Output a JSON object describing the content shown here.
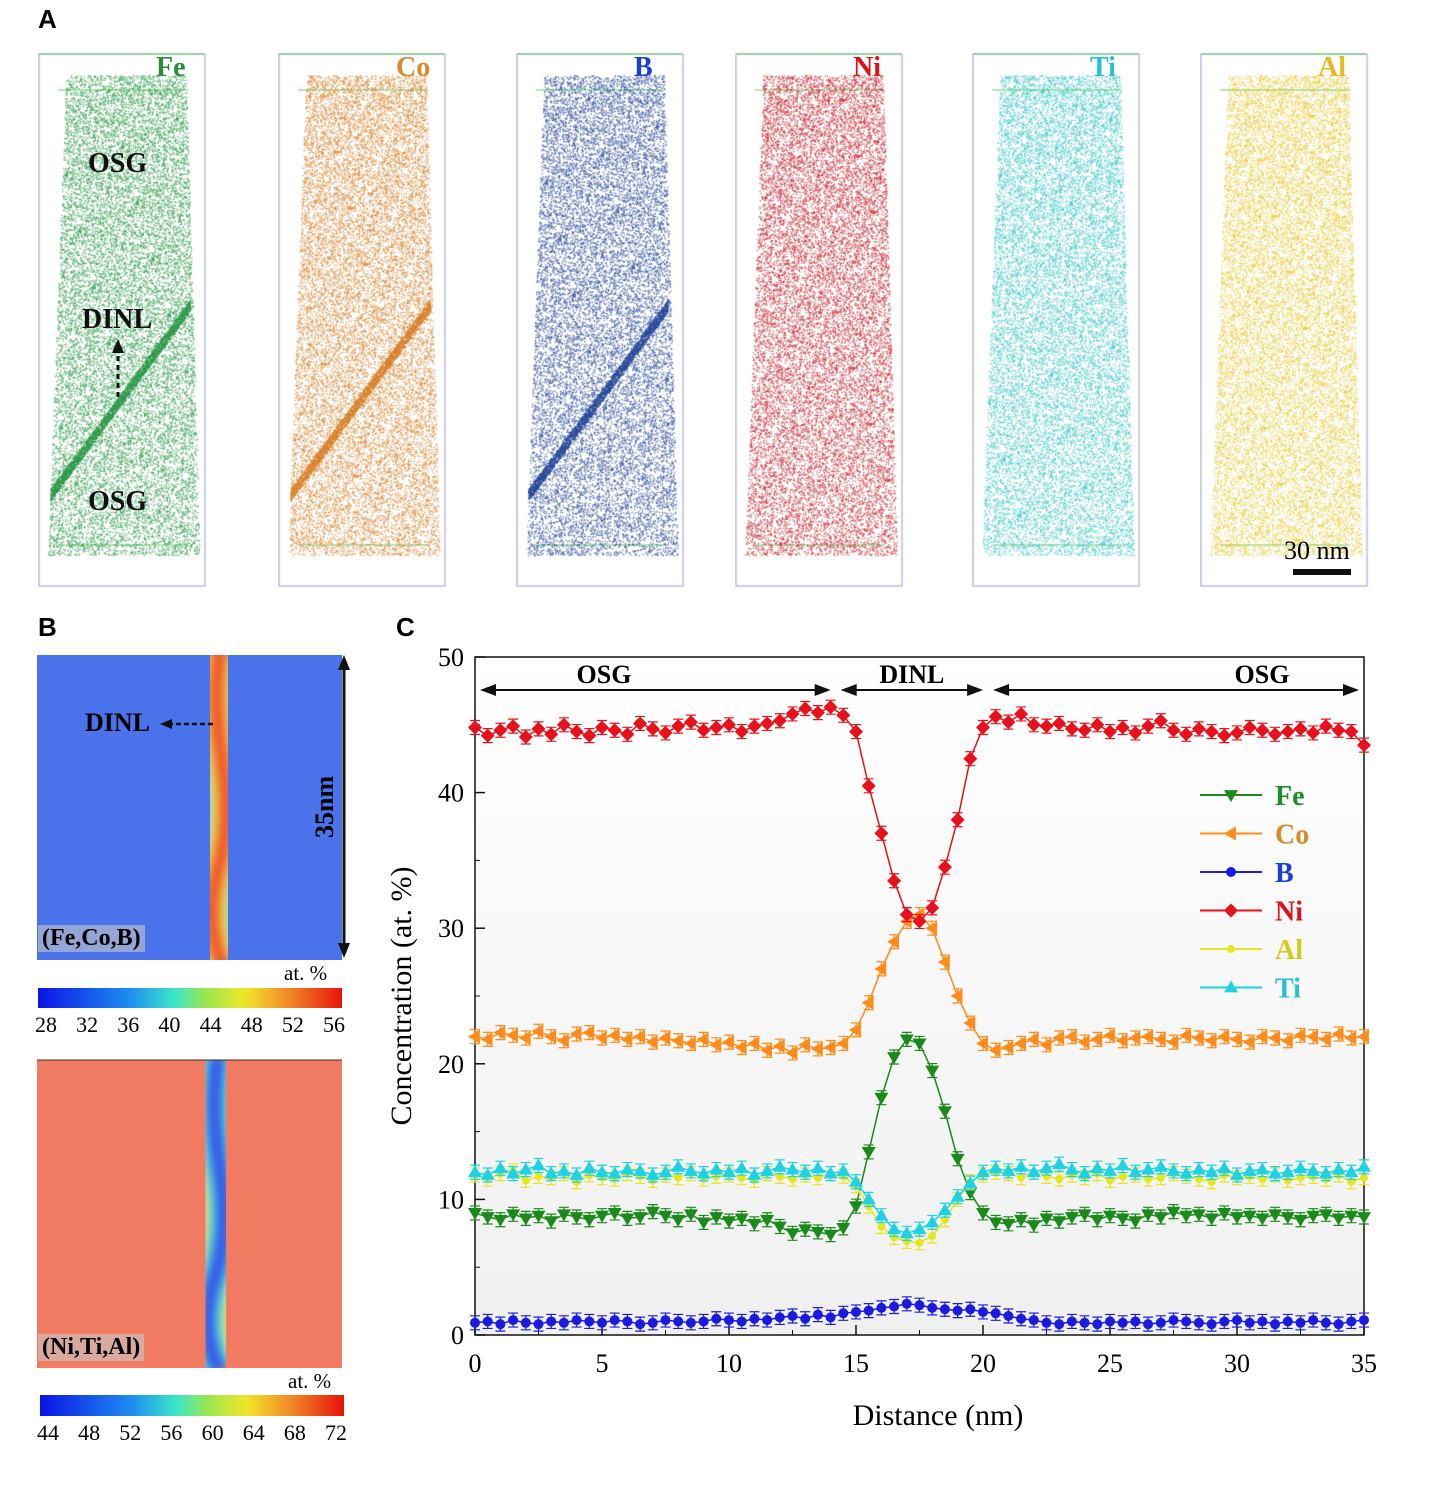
{
  "panels": {
    "a": "A",
    "b": "B",
    "c": "C"
  },
  "panel_a": {
    "tips": [
      {
        "element": "Fe",
        "label_color": "#2e8b3a",
        "dot_color": "#2e9a4a",
        "interface": true
      },
      {
        "element": "Co",
        "label_color": "#d98a2b",
        "dot_color": "#d9822b",
        "interface": true
      },
      {
        "element": "B",
        "label_color": "#1a3ed8",
        "dot_color": "#2a4a9a",
        "interface": true
      },
      {
        "element": "Ni",
        "label_color": "#e0101a",
        "dot_color": "#c8202a",
        "interface": false
      },
      {
        "element": "Ti",
        "label_color": "#28c0d0",
        "dot_color": "#3cc6c6",
        "interface": false
      },
      {
        "element": "Al",
        "label_color": "#e8b820",
        "dot_color": "#e8c830",
        "interface": false
      }
    ],
    "osg_top": "OSG",
    "dinl": "DINL",
    "osg_bottom": "OSG",
    "scale_bar": "30 nm"
  },
  "panel_b": {
    "dinl": "DINL",
    "length": "35nm",
    "maps": [
      {
        "label": "(Fe,Co,B)",
        "unit": "at. %",
        "ticks": [
          "28",
          "32",
          "36",
          "40",
          "44",
          "48",
          "52",
          "56"
        ]
      },
      {
        "label": "(Ni,Ti,Al)",
        "unit": "at. %",
        "ticks": [
          "44",
          "48",
          "52",
          "56",
          "60",
          "64",
          "68",
          "72"
        ]
      }
    ]
  },
  "chart_data": {
    "type": "line",
    "xlabel": "Distance (nm)",
    "ylabel": "Concentration (at. %)",
    "xlim": [
      0,
      35
    ],
    "ylim": [
      0,
      50
    ],
    "xticks": [
      "0",
      "5",
      "10",
      "15",
      "20",
      "25",
      "30",
      "35"
    ],
    "yticks": [
      "0",
      "10",
      "20",
      "30",
      "40",
      "50"
    ],
    "grid": false,
    "legend": "right",
    "regions": [
      {
        "label": "OSG",
        "from": 0,
        "to": 14.2
      },
      {
        "label": "DINL",
        "from": 14.2,
        "to": 20.2
      },
      {
        "label": "OSG",
        "from": 20.2,
        "to": 35
      }
    ],
    "x_step": 0.5,
    "series": [
      {
        "name": "Fe",
        "color": "#1a8a1a",
        "label_color": "#1f8f2a",
        "marker": "triangle-down",
        "values": [
          9.0,
          8.7,
          8.5,
          8.9,
          8.6,
          8.8,
          8.4,
          8.9,
          8.7,
          8.5,
          8.8,
          9.0,
          8.6,
          8.7,
          9.1,
          8.8,
          8.5,
          8.9,
          8.3,
          8.7,
          8.4,
          8.6,
          8.2,
          8.5,
          8.0,
          7.5,
          7.8,
          7.6,
          7.4,
          7.9,
          9.5,
          13.5,
          17.5,
          20.5,
          21.8,
          21.5,
          19.5,
          16.5,
          13.0,
          10.5,
          9.0,
          8.3,
          8.2,
          8.5,
          8.1,
          8.6,
          8.4,
          8.7,
          8.9,
          8.5,
          8.8,
          8.6,
          8.4,
          8.9,
          8.7,
          9.1,
          8.8,
          8.9,
          8.6,
          9.0,
          8.7,
          8.8,
          8.6,
          8.9,
          8.7,
          8.5,
          8.8,
          8.9,
          8.6,
          8.8,
          8.7
        ]
      },
      {
        "name": "Co",
        "color": "#ff8c1a",
        "label_color": "#d98a2b",
        "marker": "triangle-left",
        "values": [
          22.0,
          21.8,
          22.3,
          22.1,
          21.9,
          22.4,
          22.0,
          21.7,
          22.2,
          22.3,
          21.9,
          22.1,
          21.8,
          22.0,
          21.6,
          21.9,
          21.7,
          21.5,
          21.8,
          21.4,
          21.6,
          21.2,
          21.5,
          21.0,
          21.3,
          20.8,
          21.4,
          21.1,
          21.2,
          21.5,
          22.5,
          24.5,
          27.0,
          29.0,
          30.5,
          31.0,
          30.0,
          27.5,
          25.0,
          23.0,
          21.5,
          21.0,
          21.2,
          21.5,
          21.8,
          21.4,
          21.9,
          22.0,
          21.6,
          21.8,
          22.1,
          21.7,
          21.9,
          22.0,
          21.8,
          21.6,
          22.1,
          21.9,
          21.7,
          22.0,
          21.8,
          21.6,
          22.0,
          21.9,
          21.7,
          22.1,
          22.0,
          21.8,
          22.2,
          21.9,
          22.0
        ]
      },
      {
        "name": "B",
        "color": "#1a1ae0",
        "label_color": "#1a3ed8",
        "marker": "circle",
        "values": [
          0.9,
          1.0,
          0.8,
          1.1,
          0.9,
          0.8,
          1.0,
          0.9,
          1.1,
          1.0,
          0.9,
          1.1,
          1.0,
          0.8,
          0.9,
          1.1,
          1.0,
          0.9,
          1.0,
          1.2,
          1.1,
          1.0,
          1.2,
          1.1,
          1.3,
          1.4,
          1.2,
          1.5,
          1.3,
          1.6,
          1.7,
          1.8,
          2.0,
          2.1,
          2.3,
          2.2,
          2.0,
          1.9,
          1.8,
          1.9,
          1.7,
          1.6,
          1.4,
          1.2,
          1.1,
          0.9,
          0.8,
          1.0,
          0.9,
          0.8,
          1.0,
          0.9,
          1.0,
          0.8,
          0.9,
          1.1,
          1.0,
          0.9,
          0.8,
          1.0,
          1.1,
          0.9,
          1.0,
          0.8,
          1.0,
          0.9,
          1.1,
          0.9,
          0.8,
          1.0,
          1.1
        ]
      },
      {
        "name": "Ni",
        "color": "#e8101a",
        "label_color": "#e0101a",
        "marker": "diamond",
        "values": [
          44.8,
          44.2,
          44.6,
          44.9,
          44.1,
          44.7,
          44.3,
          45.0,
          44.5,
          44.2,
          44.8,
          44.6,
          44.3,
          45.1,
          44.7,
          44.4,
          44.9,
          45.2,
          44.6,
          44.8,
          45.0,
          44.5,
          44.9,
          45.1,
          45.3,
          45.8,
          46.2,
          45.9,
          46.3,
          45.7,
          44.5,
          40.5,
          37.0,
          33.5,
          31.0,
          30.5,
          31.5,
          34.5,
          38.0,
          42.5,
          44.8,
          45.6,
          45.2,
          45.8,
          45.0,
          44.9,
          45.1,
          44.7,
          44.6,
          45.0,
          44.5,
          44.8,
          44.4,
          44.9,
          45.3,
          44.6,
          44.3,
          44.7,
          44.5,
          44.2,
          44.4,
          44.8,
          44.6,
          44.3,
          44.5,
          44.7,
          44.4,
          44.9,
          44.6,
          44.5,
          43.5
        ]
      },
      {
        "name": "Al",
        "color": "#e6e61a",
        "label_color": "#d4cc1a",
        "marker": "circle-small",
        "values": [
          11.8,
          11.5,
          11.9,
          12.1,
          11.4,
          11.7,
          11.6,
          11.9,
          11.3,
          11.8,
          11.6,
          11.5,
          11.9,
          11.7,
          11.4,
          11.8,
          11.6,
          11.9,
          11.5,
          11.7,
          11.8,
          11.6,
          11.4,
          11.9,
          11.7,
          11.5,
          11.8,
          11.6,
          11.9,
          11.7,
          11.0,
          9.5,
          8.0,
          7.2,
          6.9,
          6.8,
          7.3,
          8.5,
          10.0,
          11.3,
          11.8,
          12.0,
          11.9,
          11.6,
          12.0,
          11.7,
          11.5,
          11.8,
          11.6,
          11.9,
          11.4,
          11.7,
          11.8,
          11.5,
          11.6,
          11.9,
          11.7,
          11.5,
          11.3,
          11.8,
          11.6,
          11.7,
          11.5,
          11.8,
          11.4,
          11.6,
          11.7,
          11.5,
          11.8,
          11.3,
          11.6
        ]
      },
      {
        "name": "Ti",
        "color": "#1ed2e6",
        "label_color": "#28c0d0",
        "marker": "triangle-up",
        "values": [
          12.0,
          11.8,
          12.3,
          11.9,
          12.2,
          12.5,
          11.9,
          12.1,
          11.8,
          12.3,
          12.0,
          11.9,
          12.2,
          12.1,
          11.8,
          12.0,
          12.4,
          12.1,
          11.9,
          12.2,
          12.0,
          12.3,
          11.8,
          12.1,
          12.4,
          12.2,
          12.0,
          12.3,
          11.9,
          12.1,
          11.3,
          10.0,
          8.8,
          7.8,
          7.5,
          7.8,
          8.3,
          9.2,
          10.2,
          11.2,
          12.0,
          12.3,
          12.1,
          12.4,
          12.0,
          12.3,
          12.6,
          12.2,
          11.9,
          12.3,
          12.1,
          12.5,
          12.0,
          12.2,
          12.4,
          12.1,
          11.9,
          12.2,
          12.0,
          12.3,
          11.8,
          12.1,
          12.2,
          11.9,
          12.0,
          12.3,
          12.1,
          11.9,
          12.2,
          12.0,
          12.4
        ]
      }
    ]
  }
}
